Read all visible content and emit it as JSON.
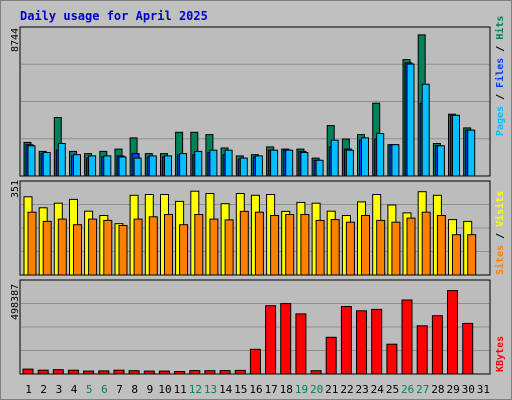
{
  "title": "Daily usage for April 2025",
  "colors": {
    "background": "#c0c0c0",
    "panel": "#bcbcbc",
    "title": "#0000cc",
    "hits": "#00805c",
    "files": "#0040ff",
    "pages": "#00c0ff",
    "visits": "#ffff00",
    "sites": "#ff8000",
    "kbytes": "#ff0000",
    "weekday": "#000000",
    "weekend": "#00805c"
  },
  "chart_data": [
    {
      "type": "bar",
      "name": "hits-files-pages",
      "y_max_label": "8744",
      "ylim": [
        0,
        8744
      ],
      "right_label": [
        "Pages",
        "Files",
        "Hits"
      ],
      "categories": [
        "1",
        "2",
        "3",
        "4",
        "5",
        "6",
        "7",
        "8",
        "9",
        "10",
        "11",
        "12",
        "13",
        "14",
        "15",
        "16",
        "17",
        "18",
        "19",
        "20",
        "21",
        "22",
        "23",
        "24",
        "25",
        "26",
        "27",
        "28",
        "29",
        "30",
        "31"
      ],
      "weekend_days": [
        "5",
        "6",
        "12",
        "13",
        "19",
        "20",
        "26",
        "27"
      ],
      "series": [
        {
          "name": "Hits",
          "values": [
            2025,
            1485,
            3527,
            1485,
            1350,
            1485,
            1620,
            2295,
            1350,
            1350,
            2633,
            2633,
            2498,
            1688,
            1215,
            1283,
            1755,
            1620,
            1620,
            1080,
            3038,
            2228,
            2498,
            4388,
            1890,
            7020,
            8507,
            1958,
            3729,
            2903,
            0
          ]
        },
        {
          "name": "Files",
          "values": [
            1890,
            1350,
            1553,
            1215,
            1080,
            1148,
            1215,
            1350,
            1148,
            1148,
            1283,
            1283,
            1418,
            1283,
            1013,
            1148,
            1553,
            1553,
            1485,
            945,
            1755,
            1620,
            2160,
            2228,
            1890,
            6818,
            4388,
            1823,
            3662,
            2768,
            0
          ]
        },
        {
          "name": "Pages",
          "values": [
            1823,
            1418,
            1958,
            1283,
            1215,
            1215,
            1148,
            1080,
            1215,
            1215,
            1350,
            1485,
            1553,
            1553,
            1080,
            1215,
            1553,
            1553,
            1418,
            945,
            2160,
            1553,
            2295,
            2565,
            1890,
            6750,
            5535,
            1823,
            3662,
            2768,
            0
          ]
        }
      ]
    },
    {
      "type": "bar",
      "name": "visits-sites",
      "y_max_label": "351",
      "ylim": [
        0,
        351
      ],
      "right_label": [
        "Sites",
        "Visits"
      ],
      "categories": [
        "1",
        "2",
        "3",
        "4",
        "5",
        "6",
        "7",
        "8",
        "9",
        "10",
        "11",
        "12",
        "13",
        "14",
        "15",
        "16",
        "17",
        "18",
        "19",
        "20",
        "21",
        "22",
        "23",
        "24",
        "25",
        "26",
        "27",
        "28",
        "29",
        "30",
        "31"
      ],
      "series": [
        {
          "name": "Visits",
          "values": [
            305,
            262,
            280,
            295,
            249,
            232,
            200,
            311,
            314,
            314,
            287,
            327,
            318,
            278,
            318,
            311,
            314,
            248,
            283,
            280,
            249,
            232,
            285,
            314,
            273,
            242,
            325,
            311,
            216,
            209,
            0
          ]
        },
        {
          "name": "Sites",
          "values": [
            245,
            209,
            218,
            196,
            218,
            213,
            193,
            218,
            227,
            236,
            196,
            236,
            218,
            215,
            248,
            245,
            232,
            236,
            236,
            213,
            216,
            206,
            232,
            213,
            206,
            222,
            245,
            232,
            157,
            157,
            0
          ]
        }
      ]
    },
    {
      "type": "bar",
      "name": "kbytes",
      "y_max_label": "498387",
      "ylim": [
        0,
        498387
      ],
      "right_label": [
        "KBytes"
      ],
      "categories": [
        "1",
        "2",
        "3",
        "4",
        "5",
        "6",
        "7",
        "8",
        "9",
        "10",
        "11",
        "12",
        "13",
        "14",
        "15",
        "16",
        "17",
        "18",
        "19",
        "20",
        "21",
        "22",
        "23",
        "24",
        "25",
        "26",
        "27",
        "28",
        "29",
        "30",
        "31"
      ],
      "series": [
        {
          "name": "KBytes",
          "values": [
            27000,
            21000,
            24000,
            21000,
            16000,
            17000,
            21000,
            18000,
            16000,
            16000,
            14000,
            19000,
            18000,
            19000,
            20000,
            137000,
            378000,
            390000,
            333000,
            18000,
            203000,
            374000,
            350000,
            358000,
            165000,
            410000,
            267000,
            323000,
            462000,
            280000,
            0
          ]
        }
      ]
    }
  ],
  "x_axis_labels": [
    "1",
    "2",
    "3",
    "4",
    "5",
    "6",
    "7",
    "8",
    "9",
    "10",
    "11",
    "12",
    "13",
    "14",
    "15",
    "16",
    "17",
    "18",
    "19",
    "20",
    "21",
    "22",
    "23",
    "24",
    "25",
    "26",
    "27",
    "28",
    "29",
    "30",
    "31"
  ]
}
